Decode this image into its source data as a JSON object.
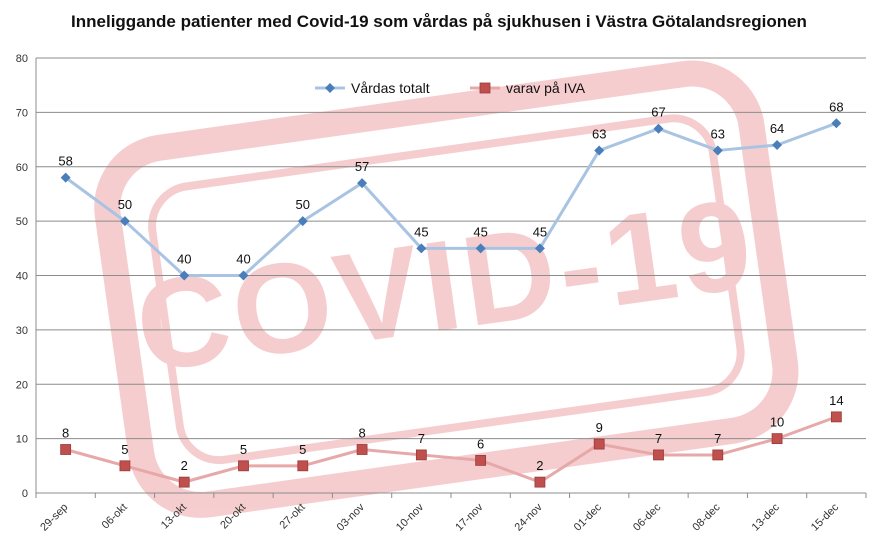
{
  "chart_data": {
    "type": "line",
    "title": "Inneliggande patienter med Covid-19 som vårdas på sjukhusen i Västra Götalandsregionen",
    "xlabel": "",
    "ylabel": "",
    "categories": [
      "29-sep",
      "06-okt",
      "13-okt",
      "20-okt",
      "27-okt",
      "03-nov",
      "10-nov",
      "17-nov",
      "24-nov",
      "01-dec",
      "06-dec",
      "08-dec",
      "13-dec",
      "15-dec"
    ],
    "ylim": [
      0,
      80
    ],
    "yticks": [
      0,
      10,
      20,
      30,
      40,
      50,
      60,
      70,
      80
    ],
    "grid": true,
    "legend_position": "top-center",
    "series": [
      {
        "name": "Vårdas totalt",
        "values": [
          58,
          50,
          40,
          40,
          50,
          57,
          45,
          45,
          45,
          63,
          67,
          63,
          64,
          68
        ],
        "line_color": "#a9c4e3",
        "marker_color": "#4a7ebb",
        "marker": "diamond"
      },
      {
        "name": "varav på IVA",
        "values": [
          8,
          5,
          2,
          5,
          5,
          8,
          7,
          6,
          2,
          9,
          7,
          7,
          10,
          14
        ],
        "line_color": "#e6a8a8",
        "marker_color": "#c0504d",
        "marker": "square"
      }
    ],
    "watermark": "COVID-19"
  }
}
